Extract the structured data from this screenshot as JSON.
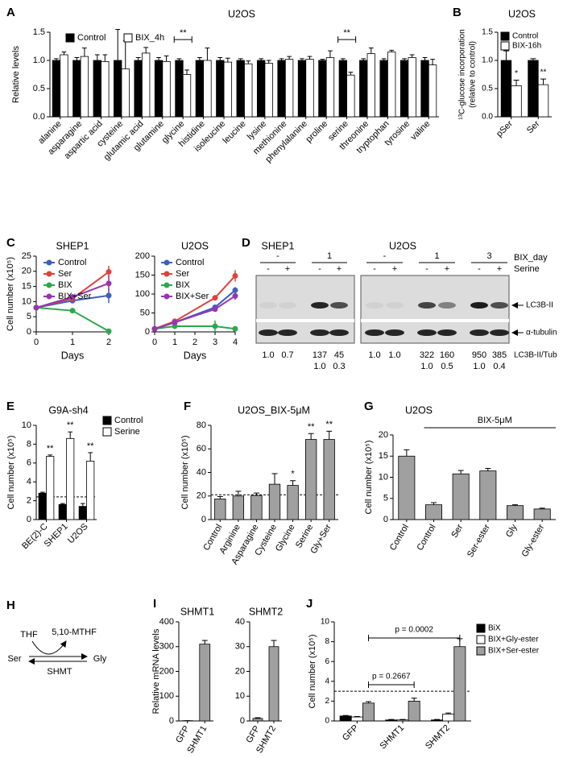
{
  "chart_data": [
    {
      "type": "bar",
      "panel": "A",
      "title": "U2OS",
      "ylabel": "Relative levels",
      "categories": [
        "alanine",
        "asparagine",
        "aspartic acid",
        "cysteine",
        "glutamic acid",
        "glutamine",
        "glycine",
        "histidine",
        "isoleucine",
        "leucine",
        "lysine",
        "methionine",
        "phenylalanine",
        "proline",
        "serine",
        "threonine",
        "tryptophan",
        "tyrosine",
        "valine"
      ],
      "series": [
        {
          "name": "Control",
          "color": "#000000",
          "values": [
            1,
            1,
            1,
            1,
            1,
            1,
            1,
            1,
            1,
            1,
            1,
            1,
            1,
            1,
            1,
            1,
            1,
            1,
            1
          ],
          "errors": [
            0.03,
            0.05,
            0.1,
            0.55,
            0.05,
            0.05,
            0.03,
            0.05,
            0.05,
            0.03,
            0.03,
            0.03,
            0.03,
            0.02,
            0.03,
            0.03,
            0.03,
            0.03,
            0.05
          ]
        },
        {
          "name": "BIX_4h",
          "color": "#ffffff",
          "values": [
            1.1,
            1.07,
            0.98,
            0.85,
            1.13,
            0.98,
            0.75,
            1.0,
            0.97,
            0.94,
            0.95,
            1.02,
            1.02,
            1.05,
            0.74,
            1.12,
            1.15,
            1.05,
            0.92
          ],
          "errors": [
            0.05,
            0.15,
            0.12,
            0.5,
            0.1,
            0.1,
            0.08,
            0.22,
            0.07,
            0.05,
            0.05,
            0.05,
            0.05,
            0.12,
            0.05,
            0.1,
            0.03,
            0.05,
            0.1
          ]
        }
      ],
      "ylim": [
        0,
        1.5
      ],
      "yticks": [
        {
          "value": 0,
          "label": "0.0"
        },
        {
          "value": 0.5,
          "label": "0.5"
        },
        {
          "value": 1,
          "label": "1.0"
        },
        {
          "value": 1.5,
          "label": "1.5"
        }
      ],
      "annotations": [
        "**",
        "**"
      ]
    },
    {
      "type": "bar",
      "panel": "B",
      "title": "U2OS",
      "ylabel": [
        "¹³C-glucose incorporation",
        "(relative to control)"
      ],
      "categories": [
        "pSer",
        "Ser"
      ],
      "series": [
        {
          "name": "Control",
          "color": "#000000",
          "values": [
            1.0,
            1.0
          ],
          "errors": [
            0.17,
            0.03
          ]
        },
        {
          "name": "BIX-16h",
          "color": "#ffffff",
          "values": [
            0.55,
            0.57
          ],
          "errors": [
            0.1,
            0.1
          ]
        }
      ],
      "ylim": [
        0,
        1.5
      ],
      "yticks": [
        {
          "value": 0,
          "label": "0.0"
        },
        {
          "value": 0.5,
          "label": "0.5"
        },
        {
          "value": 1,
          "label": "1.0"
        },
        {
          "value": 1.5,
          "label": "1.5"
        }
      ],
      "annotations": [
        "*",
        "**"
      ]
    },
    {
      "type": "line",
      "panel": "C",
      "title": "SHEP1",
      "ylabel": "Cell number (x10⁵)",
      "xlabel": "Days",
      "x": [
        0,
        1,
        2
      ],
      "series": [
        {
          "name": "Control",
          "color": "#3b5fc0",
          "values": [
            8,
            10.3,
            12
          ],
          "errors": [
            0.3,
            0.8,
            2.5
          ]
        },
        {
          "name": "Ser",
          "color": "#e0413a",
          "values": [
            8,
            11,
            19.8
          ],
          "errors": [
            0.3,
            1,
            2
          ]
        },
        {
          "name": "BIX",
          "color": "#2aa84a",
          "values": [
            8,
            7,
            0.2
          ],
          "errors": [
            0.3,
            0.3,
            0.3
          ]
        },
        {
          "name": "BIX+Ser",
          "color": "#9934b0",
          "values": [
            8,
            11.5,
            16
          ],
          "errors": [
            0.3,
            1,
            2.5
          ]
        }
      ],
      "xlim": [
        0,
        2
      ],
      "xticks": [
        0,
        1,
        2
      ],
      "ylim": [
        0,
        25
      ],
      "yticks": [
        0,
        5,
        10,
        15,
        20,
        25
      ]
    },
    {
      "type": "line",
      "title": "U2OS",
      "xlabel": "Days",
      "x": [
        0,
        1,
        3,
        4
      ],
      "series": [
        {
          "name": "Control",
          "color": "#3b5fc0",
          "values": [
            8,
            25,
            65,
            110
          ],
          "errors": [
            2,
            3,
            5,
            8
          ]
        },
        {
          "name": "Ser",
          "color": "#e0413a",
          "values": [
            8,
            28,
            90,
            148
          ],
          "errors": [
            2,
            3,
            5,
            15
          ]
        },
        {
          "name": "BIX",
          "color": "#2aa84a",
          "values": [
            8,
            15,
            15,
            8
          ],
          "errors": [
            2,
            3,
            15,
            5
          ]
        },
        {
          "name": "BIX+Ser",
          "color": "#9934b0",
          "values": [
            8,
            25,
            60,
            95
          ],
          "errors": [
            2,
            3,
            5,
            10
          ]
        }
      ],
      "xlim": [
        0,
        4
      ],
      "xticks": [
        0,
        1,
        2,
        3,
        4
      ],
      "ylim": [
        0,
        200
      ],
      "yticks": [
        0,
        50,
        100,
        150,
        200
      ]
    },
    {
      "type": "bar",
      "panel": "E",
      "title": "G9A-sh4",
      "ylabel": "Cell number (x10⁵)",
      "categories": [
        "BE(2)-C",
        "SHEP1",
        "U2OS"
      ],
      "series": [
        {
          "name": "Control",
          "color": "#000000",
          "values": [
            2.8,
            1.6,
            1.4
          ],
          "errors": [
            0.1,
            0.1,
            0.3
          ]
        },
        {
          "name": "Serine",
          "color": "#ffffff",
          "values": [
            6.7,
            8.6,
            6.2
          ],
          "errors": [
            0.15,
            0.7,
            0.9
          ]
        }
      ],
      "ylim": [
        0,
        10
      ],
      "yticks": [
        0,
        2,
        4,
        6,
        8,
        10
      ],
      "reference_line": 2.4,
      "annotations": [
        "**",
        "**",
        "**"
      ]
    },
    {
      "type": "bar",
      "panel": "F",
      "title": "U2OS_BIX-5μM",
      "ylabel": "Cell number (x10⁵)",
      "categories": [
        "Control",
        "Arginine",
        "Asparagine",
        "Cysteine",
        "Glycine",
        "Serine",
        "Gly+Ser"
      ],
      "values": [
        17.5,
        20,
        20.5,
        30,
        29,
        68,
        68
      ],
      "errors": [
        2,
        4,
        2,
        9,
        4,
        5,
        7
      ],
      "color": "#a0a0a0",
      "ylim": [
        0,
        80
      ],
      "yticks": [
        0,
        20,
        40,
        60,
        80
      ],
      "reference_line": 21,
      "annotations": [
        "*",
        "**",
        "**"
      ]
    },
    {
      "type": "bar",
      "panel": "G",
      "title": "U2OS",
      "ylabel": "Cell number (x10⁵)",
      "categories": [
        "Control",
        "Control",
        "Ser",
        "Ser-ester",
        "Gly",
        "Gly-ester"
      ],
      "values": [
        15,
        3.5,
        10.8,
        11.5,
        3.3,
        2.5
      ],
      "errors": [
        1.5,
        0.5,
        0.8,
        0.6,
        0.2,
        0.2
      ],
      "color": "#a0a0a0",
      "ylim": [
        0,
        20
      ],
      "yticks": [
        0,
        5,
        10,
        15,
        20
      ],
      "annotations": [
        "BIX-5μM"
      ]
    },
    {
      "type": "bar",
      "panel": "I",
      "title": "SHMT1",
      "ylabel": "Relative mRNA levels",
      "categories": [
        "GFP",
        "SHMT1"
      ],
      "values": [
        1,
        310
      ],
      "errors": [
        0,
        15
      ],
      "color": "#a0a0a0",
      "ylim": [
        0,
        400
      ],
      "yticks": [
        0,
        100,
        200,
        300,
        400
      ]
    },
    {
      "type": "bar",
      "title": "SHMT2",
      "categories": [
        "GFP",
        "SHMT2"
      ],
      "values": [
        1,
        30
      ],
      "errors": [
        0.3,
        2.5
      ],
      "color": "#a0a0a0",
      "ylim": [
        0,
        40
      ],
      "yticks": [
        0,
        10,
        20,
        30,
        40
      ]
    },
    {
      "type": "bar",
      "panel": "J",
      "ylabel": "Cell number (x10⁵)",
      "categories": [
        "GFP",
        "SHMT1",
        "SHMT2"
      ],
      "series": [
        {
          "name": "BiX",
          "color": "#000000",
          "values": [
            0.5,
            0.1,
            0.1
          ],
          "errors": [
            0.05,
            0.05,
            0.05
          ]
        },
        {
          "name": "BIX+Gly-ester",
          "color": "#ffffff",
          "values": [
            0.4,
            0.1,
            0.7
          ],
          "errors": [
            0.05,
            0.05,
            0.1
          ]
        },
        {
          "name": "BIX+Ser-ester",
          "color": "#a0a0a0",
          "values": [
            1.8,
            2.0,
            7.5
          ],
          "errors": [
            0.15,
            0.3,
            0.8
          ]
        }
      ],
      "ylim": [
        0,
        10
      ],
      "yticks": [
        0,
        2,
        4,
        6,
        8,
        10
      ],
      "reference_line": 3,
      "annotations": [
        "p = 0.2667",
        "p = 0.0002"
      ]
    }
  ],
  "blot": {
    "panel": "D",
    "title_left": "SHEP1",
    "title_right": "U2OS",
    "row_labels": [
      "BIX_day",
      "Serine"
    ],
    "bix_day": [
      "-",
      "1",
      "-",
      "1",
      "3"
    ],
    "serine": [
      "-",
      "+",
      "-",
      "+",
      "-",
      "+",
      "-",
      "+",
      "-",
      "+"
    ],
    "bands": [
      "LC3B-II",
      "α-tubulin"
    ],
    "ratio_label": "LC3B-II/Tub",
    "ratios": [
      "1.0",
      "0.7",
      "137",
      "45",
      "1.0",
      "1.0",
      "322",
      "160",
      "950",
      "385"
    ],
    "ratios2": [
      "1.0",
      "0.3",
      "1.0",
      "0.5",
      "1.0",
      "0.4"
    ]
  },
  "diagram": {
    "panel": "H",
    "nodes": [
      "THF",
      "5,10-MTHF",
      "Ser",
      "Gly"
    ],
    "enzyme": "SHMT"
  }
}
